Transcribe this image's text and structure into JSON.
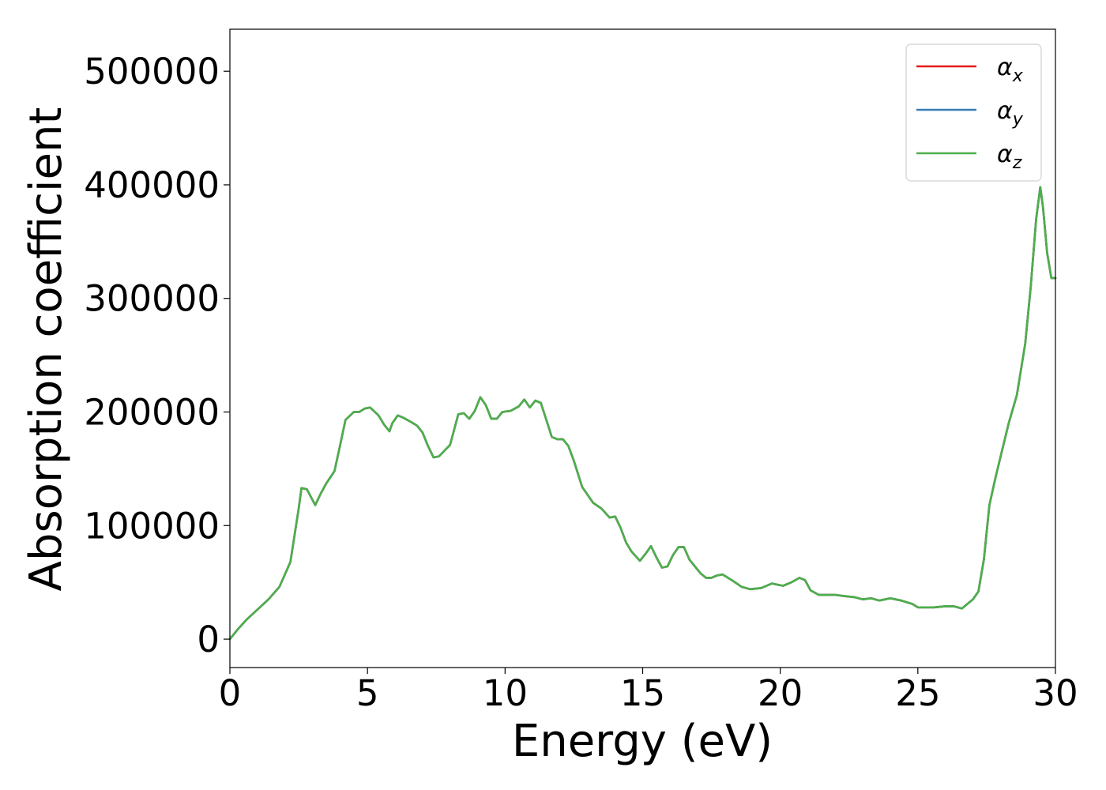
{
  "chart_data": {
    "type": "line",
    "title": "",
    "xlabel": "Energy (eV)",
    "ylabel": "Absorption coefficient",
    "xlim": [
      0,
      30
    ],
    "ylim": [
      -25000,
      537000
    ],
    "xticks": [
      0,
      5,
      10,
      15,
      20,
      25,
      30
    ],
    "yticks": [
      0,
      100000,
      200000,
      300000,
      400000,
      500000
    ],
    "grid": false,
    "legend_position": "top-right",
    "series": [
      {
        "name": "α",
        "subscript": "x",
        "color": "#e41a1c"
      },
      {
        "name": "α",
        "subscript": "y",
        "color": "#377eb8"
      },
      {
        "name": "α",
        "subscript": "z",
        "color": "#4daf4a"
      }
    ],
    "x": [
      0,
      0.3,
      0.6,
      1.0,
      1.4,
      1.8,
      2.2,
      2.5,
      2.6,
      2.8,
      3.1,
      3.3,
      3.5,
      3.8,
      4.0,
      4.2,
      4.5,
      4.7,
      4.9,
      5.1,
      5.4,
      5.6,
      5.8,
      5.9,
      6.1,
      6.3,
      6.6,
      6.8,
      7.0,
      7.2,
      7.4,
      7.6,
      7.8,
      8.0,
      8.3,
      8.5,
      8.7,
      8.9,
      9.1,
      9.3,
      9.5,
      9.7,
      9.9,
      10.2,
      10.5,
      10.7,
      10.9,
      11.1,
      11.3,
      11.5,
      11.7,
      11.9,
      12.1,
      12.3,
      12.5,
      12.8,
      13.2,
      13.5,
      13.8,
      14.0,
      14.2,
      14.4,
      14.6,
      14.9,
      15.1,
      15.3,
      15.5,
      15.7,
      15.9,
      16.1,
      16.3,
      16.5,
      16.7,
      16.9,
      17.1,
      17.3,
      17.5,
      17.7,
      17.9,
      18.1,
      18.3,
      18.6,
      18.9,
      19.3,
      19.7,
      20.1,
      20.4,
      20.7,
      20.9,
      21.1,
      21.4,
      21.7,
      22.0,
      22.3,
      22.7,
      23.0,
      23.3,
      23.6,
      24.0,
      24.4,
      24.8,
      25.0,
      25.3,
      25.6,
      26.0,
      26.3,
      26.6,
      26.8,
      27.0,
      27.2,
      27.4,
      27.6,
      27.8,
      28.0,
      28.3,
      28.6,
      28.9,
      29.1,
      29.3,
      29.45,
      29.55,
      29.7,
      29.85,
      30.0
    ],
    "y": [
      0,
      9000,
      17000,
      26000,
      35000,
      46000,
      68000,
      115000,
      133000,
      132000,
      118000,
      128000,
      137000,
      148000,
      170000,
      193000,
      200000,
      200000,
      203000,
      204000,
      197000,
      189000,
      183000,
      190000,
      197000,
      195000,
      191000,
      188000,
      182000,
      170000,
      160000,
      161000,
      166000,
      171000,
      198000,
      199000,
      194000,
      201000,
      213000,
      206000,
      194000,
      194000,
      200000,
      201000,
      205000,
      211000,
      204000,
      210000,
      208000,
      193000,
      178000,
      176000,
      176000,
      170000,
      157000,
      134000,
      120000,
      115000,
      107000,
      108000,
      98000,
      85000,
      77000,
      69000,
      75000,
      82000,
      72000,
      63000,
      64000,
      74000,
      81000,
      81000,
      70000,
      64000,
      58000,
      54000,
      54000,
      56000,
      57000,
      54000,
      51000,
      46000,
      44000,
      45000,
      49000,
      47000,
      50000,
      54000,
      52000,
      43000,
      39000,
      39000,
      39000,
      38000,
      37000,
      35000,
      36000,
      34000,
      36000,
      34000,
      31000,
      28000,
      28000,
      28000,
      29000,
      29000,
      27000,
      31000,
      35000,
      42000,
      70000,
      118000,
      140000,
      160000,
      190000,
      215000,
      260000,
      310000,
      370000,
      398000,
      380000,
      340000,
      318000,
      318000
    ]
  }
}
